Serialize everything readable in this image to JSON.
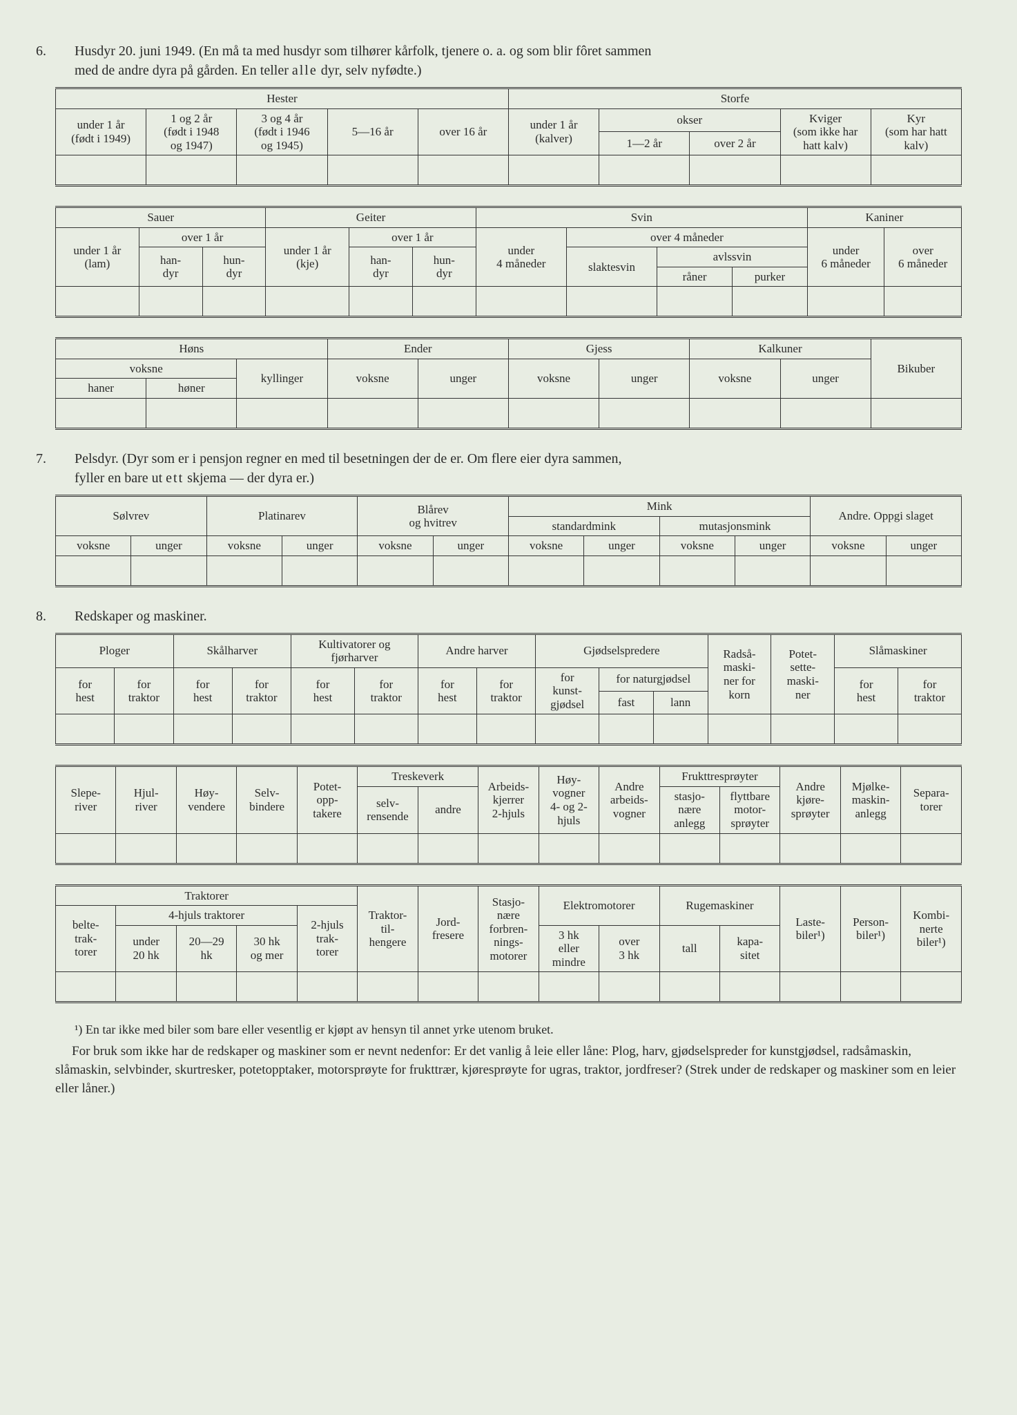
{
  "background_color": "#e8ede3",
  "text_color": "#2a2a2a",
  "border_color": "#333333",
  "font_family": "Georgia, serif",
  "section6": {
    "number": "6.",
    "title_a": "Husdyr 20. juni 1949.  (En må ta med husdyr som tilhører kårfolk, tjenere o. a. og som blir fôret sammen",
    "title_b": "med de andre dyra på gården.   En teller ",
    "title_b_spaced": "alle",
    "title_b_end": " dyr, selv nyfødte.)",
    "tableA": {
      "hester": "Hester",
      "storfe": "Storfe",
      "h_under1": "under 1 år\n(født i 1949)",
      "h_1og2": "1 og 2 år\n(født i 1948\nog 1947)",
      "h_3og4": "3 og 4 år\n(født i 1946\nog 1945)",
      "h_5_16": "5—16 år",
      "h_over16": "over 16 år",
      "s_under1": "under 1 år\n(kalver)",
      "okser": "okser",
      "o_1_2": "1—2 år",
      "o_over2": "over 2 år",
      "kviger": "Kviger\n(som ikke har\nhatt kalv)",
      "kyr": "Kyr\n(som har hatt\nkalv)"
    },
    "tableB": {
      "sauer": "Sauer",
      "geiter": "Geiter",
      "svin": "Svin",
      "kaniner": "Kaniner",
      "under1_lam": "under 1 år\n(lam)",
      "over1": "over 1 år",
      "handyr": "han-\ndyr",
      "hundyr": "hun-\ndyr",
      "under1_kje": "under 1 år\n(kje)",
      "under4m": "under\n4 måneder",
      "over4m": "over 4 måneder",
      "slaktesvin": "slaktesvin",
      "avlssvin": "avlssvin",
      "raner": "råner",
      "purker": "purker",
      "under6m": "under\n6 måneder",
      "over6m": "over\n6 måneder"
    },
    "tableC": {
      "hons": "Høns",
      "ender": "Ender",
      "gjess": "Gjess",
      "kalkuner": "Kalkuner",
      "bikuber": "Bikuber",
      "voksne": "voksne",
      "haner": "haner",
      "honer": "høner",
      "kyllinger": "kyllinger",
      "unger": "unger"
    }
  },
  "section7": {
    "number": "7.",
    "title_a": "Pelsdyr.  (Dyr som er i pensjon regner en med til besetningen der de er.  Om flere eier dyra sammen,",
    "title_b": "fyller en bare ut ",
    "title_b_spaced": "ett",
    "title_b_end": " skjema — der dyra er.)",
    "table": {
      "solvrev": "Sølvrev",
      "platinarev": "Platinarev",
      "blarev": "Blårev\nog hvitrev",
      "mink": "Mink",
      "standardmink": "standardmink",
      "mutasjonsmink": "mutasjonsmink",
      "andre": "Andre.  Oppgi slaget",
      "voksne": "voksne",
      "unger": "unger"
    }
  },
  "section8": {
    "number": "8.",
    "title": "Redskaper og maskiner.",
    "tableA": {
      "ploger": "Ploger",
      "skalharver": "Skålharver",
      "kultivatorer": "Kultivatorer og\nfjørharver",
      "andre_harver": "Andre harver",
      "gjodselspredere": "Gjødselspredere",
      "radsa": "Radså-\nmaski-\nner for\nkorn",
      "potet": "Potet-\nsette-\nmaski-\nner",
      "slamaskiner": "Slåmaskiner",
      "for_hest": "for\nhest",
      "for_traktor": "for\ntraktor",
      "for_kunst": "for\nkunst-\ngjødsel",
      "for_natur": "for naturgjødsel",
      "fast": "fast",
      "lann": "lann"
    },
    "tableB": {
      "sleperiver": "Slepe-\nriver",
      "hjulriver": "Hjul-\nriver",
      "hoyvendere": "Høy-\nvendere",
      "selvbindere": "Selv-\nbindere",
      "potetopp": "Potet-\nopp-\ntakere",
      "treskeverk": "Treskeverk",
      "selvrensende": "selv-\nrensende",
      "andre": "andre",
      "arbeidskjerrer": "Arbeids-\nkjerrer\n2-hjuls",
      "hoyvogner": "Høy-\nvogner\n4- og 2-\nhjuls",
      "andre_arbeids": "Andre\narbeids-\nvogner",
      "frukttre": "Frukttresprøyter",
      "stasjonaere": "stasjo-\nnære\nanlegg",
      "flyttbare": "flyttbare\nmotor-\nsprøyter",
      "andre_kjore": "Andre\nkjøre-\nsprøyter",
      "mjolke": "Mjølke-\nmaskin-\nanlegg",
      "separatorer": "Separa-\ntorer"
    },
    "tableC": {
      "traktorer": "Traktorer",
      "belte": "belte-\ntrak-\ntorer",
      "fourhjuls": "4-hjuls traktorer",
      "under20": "under\n20 hk",
      "h20_29": "20—29\nhk",
      "h30": "30 hk\nog mer",
      "tohjuls": "2-hjuls\ntrak-\ntorer",
      "traktortil": "Traktor-\ntil-\nhengere",
      "jordfresere": "Jord-\nfresere",
      "stasjonaere": "Stasjo-\nnære\nforbren-\nnings-\nmotorer",
      "elektromotorer": "Elektromotorer",
      "hk3": "3 hk\neller\nmindre",
      "over3hk": "over\n3 hk",
      "rugemaskiner": "Rugemaskiner",
      "tall": "tall",
      "kapasitet": "kapa-\nsitet",
      "lastebiler": "Laste-\nbiler¹)",
      "personbiler": "Person-\nbiler¹)",
      "kombinerte": "Kombi-\nnerte\nbiler¹)"
    }
  },
  "footnote": "¹) En tar ikke med biler som bare eller vesentlig er kjøpt av hensyn til annet yrke utenom bruket.",
  "para1": "For bruk som ikke har de redskaper og maskiner som er nevnt nedenfor:  Er det vanlig å leie eller låne:  Plog, harv, gjødselspreder for kunstgjødsel, radsåmaskin, slåmaskin, selvbinder, skurtresker, potetopptaker, motorsprøyte for frukttrær, kjøresprøyte for ugras, traktor, jordfreser?  (Strek under de redskaper og maskiner som en leier eller låner.)"
}
